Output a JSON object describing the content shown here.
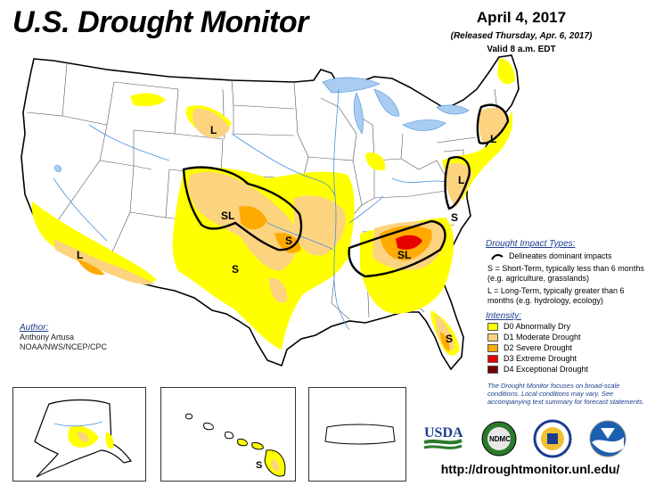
{
  "header": {
    "title": "U.S. Drought Monitor",
    "date": "April 4, 2017",
    "released": "(Released Thursday, Apr. 6, 2017)",
    "valid": "Valid 8 a.m. EDT"
  },
  "map_labels": {
    "montana_l": "L",
    "colorado_sl": "SL",
    "kansas_s": "S",
    "texas_s": "S",
    "socal_l": "L",
    "southeast_sl": "SL",
    "carolina_s": "S",
    "virginia_l": "L",
    "newengland_l": "L",
    "florida_s": "S",
    "hawaii_s": "S"
  },
  "legend": {
    "impact_header": "Drought Impact Types:",
    "impact_line": "Delineates dominant impacts",
    "impact_s": "S = Short-Term, typically less than 6 months (e.g. agriculture, grasslands)",
    "impact_l": "L = Long-Term, typically greater than 6 months (e.g. hydrology, ecology)",
    "intensity_header": "Intensity:",
    "items": [
      {
        "label": "D0 Abnormally Dry",
        "color": "#ffff00"
      },
      {
        "label": "D1 Moderate Drought",
        "color": "#fcd37f"
      },
      {
        "label": "D2 Severe Drought",
        "color": "#ffaa00"
      },
      {
        "label": "D3 Extreme Drought",
        "color": "#e60000"
      },
      {
        "label": "D4 Exceptional Drought",
        "color": "#730000"
      }
    ]
  },
  "note": "The Drought Monitor focuses on broad-scale conditions. Local conditions may vary. See accompanying text summary for forecast statements.",
  "author": {
    "label": "Author:",
    "name": "Anthony Artusa",
    "org": "NOAA/NWS/NCEP/CPC"
  },
  "logos": {
    "usda": "USDA",
    "ndmc": "NDMC"
  },
  "footer": {
    "url": "http://droughtmonitor.unl.edu/"
  },
  "colors": {
    "water": "#a8cdf0",
    "river": "#4a90d9",
    "d0": "#ffff00",
    "d1": "#fcd37f",
    "d2": "#ffaa00",
    "d3": "#e60000",
    "d4": "#730000"
  }
}
